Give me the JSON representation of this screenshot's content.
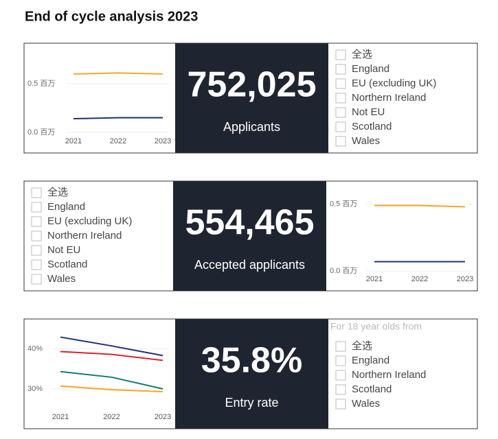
{
  "title": "End of cycle analysis 2023",
  "panels": [
    {
      "chart": {
        "type": "line",
        "categories": [
          "2021",
          "2022",
          "2023"
        ],
        "series": [
          {
            "color": "#f5a623",
            "values": [
              0.6,
              0.61,
              0.6
            ]
          },
          {
            "color": "#1f2f7a",
            "values": [
              0.14,
              0.15,
              0.15
            ]
          }
        ],
        "ylim": [
          -0.05,
          0.775
        ],
        "yticks": [
          {
            "value": 0,
            "label": "0.0 百万"
          },
          {
            "value": 0.5,
            "label": "0.5 百万"
          }
        ],
        "grid": true
      },
      "kpi": {
        "value": "752,025",
        "label": "Applicants"
      },
      "filter": {
        "items": [
          "全选",
          "England",
          "EU (excluding UK)",
          "Northern Ireland",
          "Not EU",
          "Scotland",
          "Wales"
        ]
      }
    },
    {
      "chart": {
        "type": "line",
        "categories": [
          "2021",
          "2022",
          "2023"
        ],
        "series": [
          {
            "color": "#f5a623",
            "values": [
              0.49,
              0.49,
              0.48
            ]
          },
          {
            "color": "#1f2f7a",
            "values": [
              0.07,
              0.07,
              0.07
            ]
          }
        ],
        "ylim": [
          -0.03,
          0.57
        ],
        "yticks": [
          {
            "value": 0,
            "label": "0.0 百万"
          },
          {
            "value": 0.5,
            "label": "0.5 百万"
          }
        ],
        "grid": true
      },
      "kpi": {
        "value": "554,465",
        "label": "Accepted applicants"
      },
      "filter": {
        "items": [
          "全选",
          "England",
          "EU (excluding UK)",
          "Northern Ireland",
          "Not EU",
          "Scotland",
          "Wales"
        ]
      }
    },
    {
      "chart": {
        "type": "line",
        "categories": [
          "2021",
          "2022",
          "2023"
        ],
        "series": [
          {
            "color": "#1f2f7a",
            "values": [
              42.9,
              40.7,
              38.3
            ]
          },
          {
            "color": "#e0202e",
            "values": [
              39.3,
              38.6,
              37.1
            ]
          },
          {
            "color": "#0f7b74",
            "values": [
              34.3,
              32.9,
              30.0
            ]
          },
          {
            "color": "#f5a623",
            "values": [
              30.7,
              29.8,
              29.3
            ]
          }
        ],
        "ylim": [
          24,
          44
        ],
        "yticks": [
          {
            "value": 30,
            "label": "30%"
          },
          {
            "value": 40,
            "label": "40%"
          }
        ],
        "grid": true
      },
      "kpi": {
        "value": "35.8%",
        "label": "Entry rate"
      },
      "filter": {
        "heading": "For 18 year olds from",
        "items": [
          "全选",
          "England",
          "Northern Ireland",
          "Scotland",
          "Wales"
        ]
      }
    }
  ]
}
